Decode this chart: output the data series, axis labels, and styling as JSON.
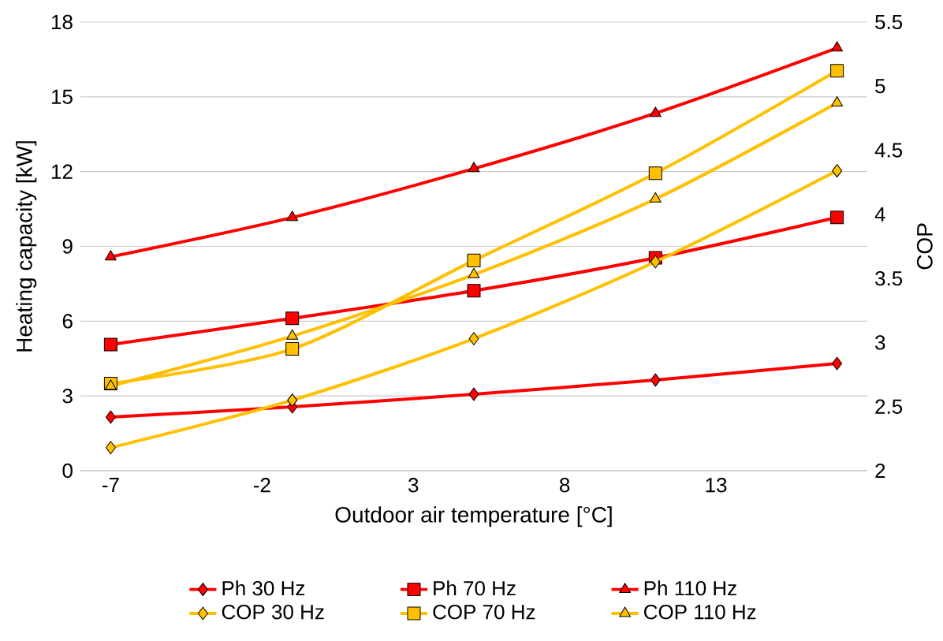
{
  "chart_data": {
    "type": "line",
    "xlabel": "Outdoor air temperature [°C]",
    "ylabel": "Heating capacity [kW]",
    "y2label": "COP",
    "xlim": [
      -8,
      18
    ],
    "xticks": [
      -7,
      -2,
      3,
      8,
      13
    ],
    "ylim": [
      0,
      18
    ],
    "yticks": [
      0,
      3,
      6,
      9,
      12,
      15,
      18
    ],
    "y2lim": [
      2,
      5.5
    ],
    "y2ticks": [
      2,
      2.5,
      3,
      3.5,
      4,
      4.5,
      5,
      5.5
    ],
    "x": [
      -7,
      -1,
      5,
      11,
      17
    ],
    "grid": "y",
    "legend": "bottom",
    "series": [
      {
        "name": "Ph 30 Hz",
        "color": "#ff0000",
        "marker": "diamond",
        "values": [
          2.15,
          2.56,
          3.07,
          3.64,
          4.3
        ]
      },
      {
        "name": "Ph 70 Hz",
        "color": "#ff0000",
        "marker": "square",
        "values": [
          5.06,
          6.11,
          7.22,
          8.54,
          10.16
        ]
      },
      {
        "name": "Ph 110 Hz",
        "color": "#ff0000",
        "marker": "triangle",
        "values": [
          8.58,
          10.16,
          12.12,
          14.34,
          16.96
        ]
      },
      {
        "name": "COP 30 Hz",
        "color": "#ffc000",
        "marker": "diamond",
        "axis": "y2",
        "values": [
          2.18,
          2.55,
          3.03,
          3.63,
          4.34
        ]
      },
      {
        "name": "COP 70 Hz",
        "color": "#ffc000",
        "marker": "square",
        "axis": "y2",
        "values": [
          2.68,
          2.95,
          3.64,
          4.32,
          5.12
        ]
      },
      {
        "name": "COP 110 Hz",
        "color": "#ffc000",
        "marker": "triangle",
        "axis": "y2",
        "values": [
          2.66,
          3.05,
          3.53,
          4.12,
          4.87
        ]
      }
    ]
  }
}
